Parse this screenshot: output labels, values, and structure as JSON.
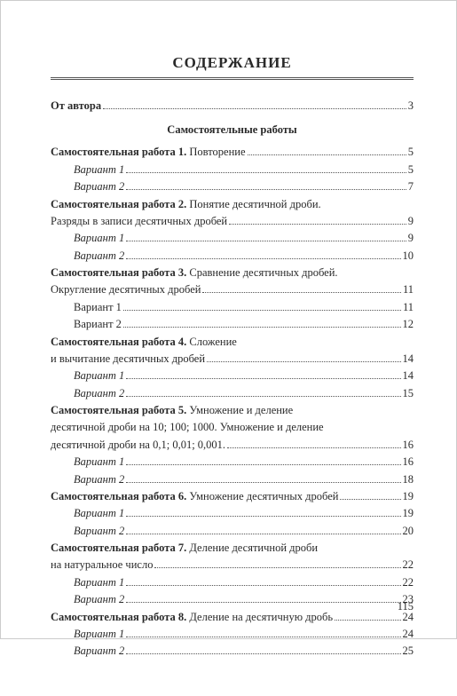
{
  "heading": "СОДЕРЖАНИЕ",
  "page_number": "115",
  "section_header": "Самостоятельные работы",
  "colors": {
    "text": "#2a2a2a",
    "background": "#ffffff",
    "dots": "#555555"
  },
  "typography": {
    "base_fontsize_pt": 10,
    "title_fontsize_pt": 13,
    "font_family": "Georgia, Times New Roman, serif"
  },
  "entries": [
    {
      "type": "line",
      "label": "От автора",
      "page": "3",
      "bold": true
    },
    {
      "type": "section_header"
    },
    {
      "type": "line",
      "label_bold": "Самостоятельная работа 1.",
      "label_rest": "  Повторение",
      "page": "5"
    },
    {
      "type": "variant",
      "label": "Вариант 1",
      "page": "5"
    },
    {
      "type": "variant",
      "label": "Вариант 2",
      "page": "7"
    },
    {
      "type": "cont",
      "label_bold": "Самостоятельная работа 2.",
      "label_rest": " Понятие десятичной дроби."
    },
    {
      "type": "line",
      "label": "Разряды в записи десятичных дробей",
      "page": "9"
    },
    {
      "type": "variant",
      "label": "Вариант 1",
      "page": "9"
    },
    {
      "type": "variant",
      "label": "Вариант 2",
      "page": "10"
    },
    {
      "type": "cont",
      "label_bold": "Самостоятельная работа 3.",
      "label_rest": " Сравнение десятичных дробей."
    },
    {
      "type": "line",
      "label": "Округление десятичных дробей",
      "page": "11"
    },
    {
      "type": "variant_plain",
      "label": "Вариант 1",
      "page": "11"
    },
    {
      "type": "variant_plain",
      "label": "Вариант 2",
      "page": "12"
    },
    {
      "type": "cont",
      "label_bold": "Самостоятельная работа 4.",
      "label_rest": " Сложение"
    },
    {
      "type": "line",
      "label": "и вычитание десятичных дробей",
      "page": "14"
    },
    {
      "type": "variant",
      "label": "Вариант 1",
      "page": "14"
    },
    {
      "type": "variant",
      "label": "Вариант 2",
      "page": "15"
    },
    {
      "type": "cont",
      "label_bold": "Самостоятельная работа 5.",
      "label_rest": " Умножение и деление"
    },
    {
      "type": "cont_plain",
      "label": "десятичной дроби на 10; 100; 1000. Умножение и деление"
    },
    {
      "type": "line",
      "label": "десятичной  дроби на 0,1; 0,01; 0,001.",
      "page": "16"
    },
    {
      "type": "variant",
      "label": "Вариант 1",
      "page": "16"
    },
    {
      "type": "variant",
      "label": "Вариант 2",
      "page": "18"
    },
    {
      "type": "line",
      "label_bold": "Самостоятельная работа 6.",
      "label_rest": " Умножение десятичных дробей",
      "page": "19"
    },
    {
      "type": "variant",
      "label": "Вариант 1",
      "page": "19"
    },
    {
      "type": "variant",
      "label": "Вариант 2",
      "page": "20"
    },
    {
      "type": "cont",
      "label_bold": "Самостоятельная работа 7.",
      "label_rest": " Деление десятичной дроби"
    },
    {
      "type": "line",
      "label": "на натуральное число",
      "page": "22"
    },
    {
      "type": "variant",
      "label": "Вариант 1",
      "page": "22"
    },
    {
      "type": "variant",
      "label": "Вариант 2",
      "page": "23"
    },
    {
      "type": "line",
      "label_bold": "Самостоятельная работа 8.",
      "label_rest": " Деление на десятичную дробь",
      "page": "24"
    },
    {
      "type": "variant",
      "label": "Вариант 1",
      "page": "24"
    },
    {
      "type": "variant",
      "label": "Вариант 2",
      "page": "25"
    }
  ]
}
